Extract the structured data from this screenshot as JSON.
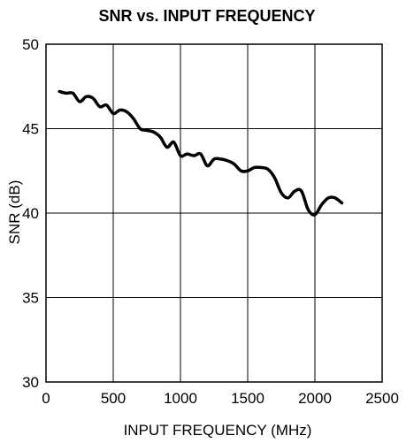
{
  "chart_data": {
    "type": "line",
    "title": "SNR vs. INPUT FREQUENCY",
    "xlabel": "INPUT FREQUENCY (MHz)",
    "ylabel": "SNR (dB)",
    "xlim": [
      0,
      2500
    ],
    "ylim": [
      30,
      50
    ],
    "xticks": [
      0,
      500,
      1000,
      1500,
      2000,
      2500
    ],
    "yticks": [
      30,
      35,
      40,
      45,
      50
    ],
    "grid": true,
    "series": [
      {
        "x": [
          100,
          150,
          200,
          250,
          300,
          350,
          400,
          450,
          500,
          550,
          600,
          650,
          700,
          750,
          800,
          850,
          900,
          950,
          1000,
          1050,
          1100,
          1150,
          1200,
          1250,
          1300,
          1350,
          1400,
          1450,
          1500,
          1550,
          1600,
          1650,
          1700,
          1750,
          1800,
          1850,
          1900,
          1950,
          2000,
          2050,
          2100,
          2150,
          2200
        ],
        "y": [
          47.2,
          47.1,
          47.1,
          46.6,
          46.9,
          46.8,
          46.3,
          46.4,
          45.9,
          46.1,
          46.0,
          45.6,
          45.0,
          44.9,
          44.8,
          44.5,
          43.9,
          44.2,
          43.4,
          43.5,
          43.4,
          43.5,
          42.8,
          43.2,
          43.2,
          43.1,
          42.9,
          42.5,
          42.5,
          42.7,
          42.7,
          42.6,
          42.1,
          41.2,
          40.9,
          41.3,
          41.3,
          40.2,
          39.9,
          40.5,
          40.9,
          40.9,
          40.6
        ]
      }
    ]
  }
}
